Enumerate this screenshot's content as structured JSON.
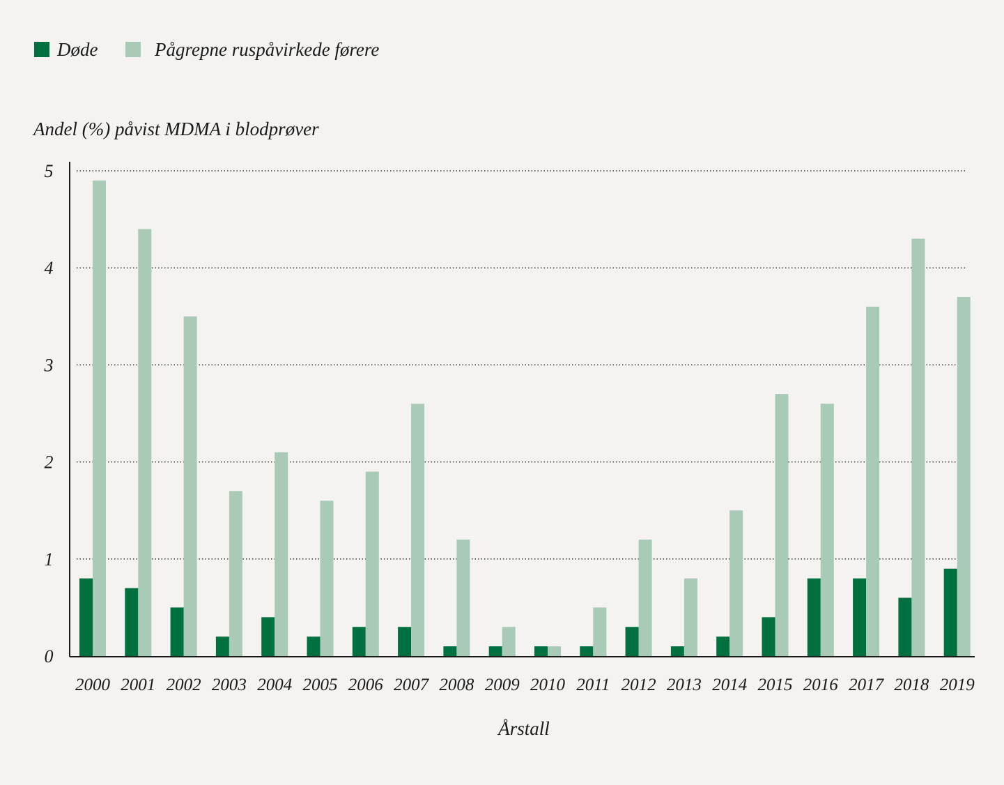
{
  "chart_data": {
    "type": "bar",
    "title": "",
    "ylabel": "Andel (%) påvist MDMA i blodprøver",
    "xlabel": "Årstall",
    "ylim": [
      0,
      5
    ],
    "yticks": [
      "0",
      "1",
      "2",
      "3",
      "4",
      "5"
    ],
    "grid": "horizontal dotted",
    "legend_position": "top-left",
    "categories": [
      "2000",
      "2001",
      "2002",
      "2003",
      "2004",
      "2005",
      "2006",
      "2007",
      "2008",
      "2009",
      "2010",
      "2011",
      "2012",
      "2013",
      "2014",
      "2015",
      "2016",
      "2017",
      "2018",
      "2019"
    ],
    "series": [
      {
        "name": "Døde",
        "color": "#00703f",
        "values": [
          0.8,
          0.7,
          0.5,
          0.2,
          0.4,
          0.2,
          0.3,
          0.3,
          0.1,
          0.1,
          0.1,
          0.1,
          0.3,
          0.1,
          0.2,
          0.4,
          0.8,
          0.8,
          0.6,
          0.9
        ]
      },
      {
        "name": "Pågrepne ruspåvirkede førere",
        "color": "#a9cab7",
        "values": [
          4.9,
          4.4,
          3.5,
          1.7,
          2.1,
          1.6,
          1.9,
          2.6,
          1.2,
          0.3,
          0.1,
          0.5,
          1.2,
          0.8,
          1.5,
          2.7,
          2.6,
          3.6,
          4.3,
          3.7
        ]
      }
    ]
  }
}
